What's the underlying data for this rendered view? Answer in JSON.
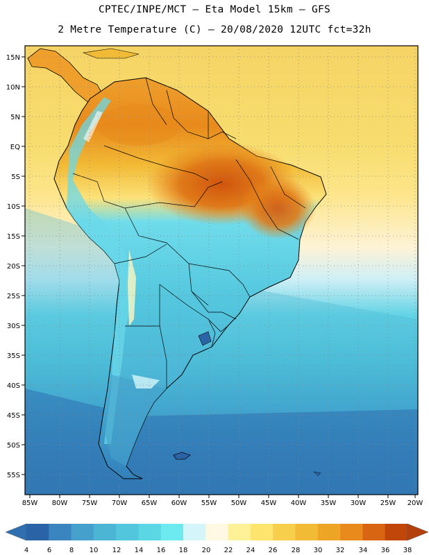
{
  "header": {
    "line1": "CPTEC/INPE/MCT –  Eta Model 15km – GFS",
    "line2": "2 Metre Temperature (C) – 20/08/2020 12UTC fct=32h"
  },
  "map": {
    "lat_labels": [
      "15N",
      "10N",
      "5N",
      "EQ",
      "5S",
      "10S",
      "15S",
      "20S",
      "25S",
      "30S",
      "35S",
      "40S",
      "45S",
      "50S",
      "55S"
    ],
    "lon_labels": [
      "85W",
      "80W",
      "75W",
      "70W",
      "65W",
      "60W",
      "55W",
      "50W",
      "45W",
      "40W",
      "35W",
      "30W",
      "25W",
      "20W"
    ]
  },
  "legend": {
    "labels": [
      "4",
      "6",
      "8",
      "10",
      "12",
      "14",
      "16",
      "18",
      "20",
      "22",
      "24",
      "26",
      "28",
      "30",
      "32",
      "34",
      "36",
      "38"
    ],
    "colors": [
      "#2a64a6",
      "#3a85c0",
      "#45a1cc",
      "#4cb5d6",
      "#52c6dd",
      "#5bd6e5",
      "#6ceaf0",
      "#d4f6fa",
      "#fff8e3",
      "#fef196",
      "#fde46c",
      "#f7cf4c",
      "#f2bb36",
      "#eea525",
      "#e88a1c",
      "#d86512",
      "#c0460a"
    ],
    "under_color": "#2f6fb0",
    "over_color": "#b4400c"
  }
}
